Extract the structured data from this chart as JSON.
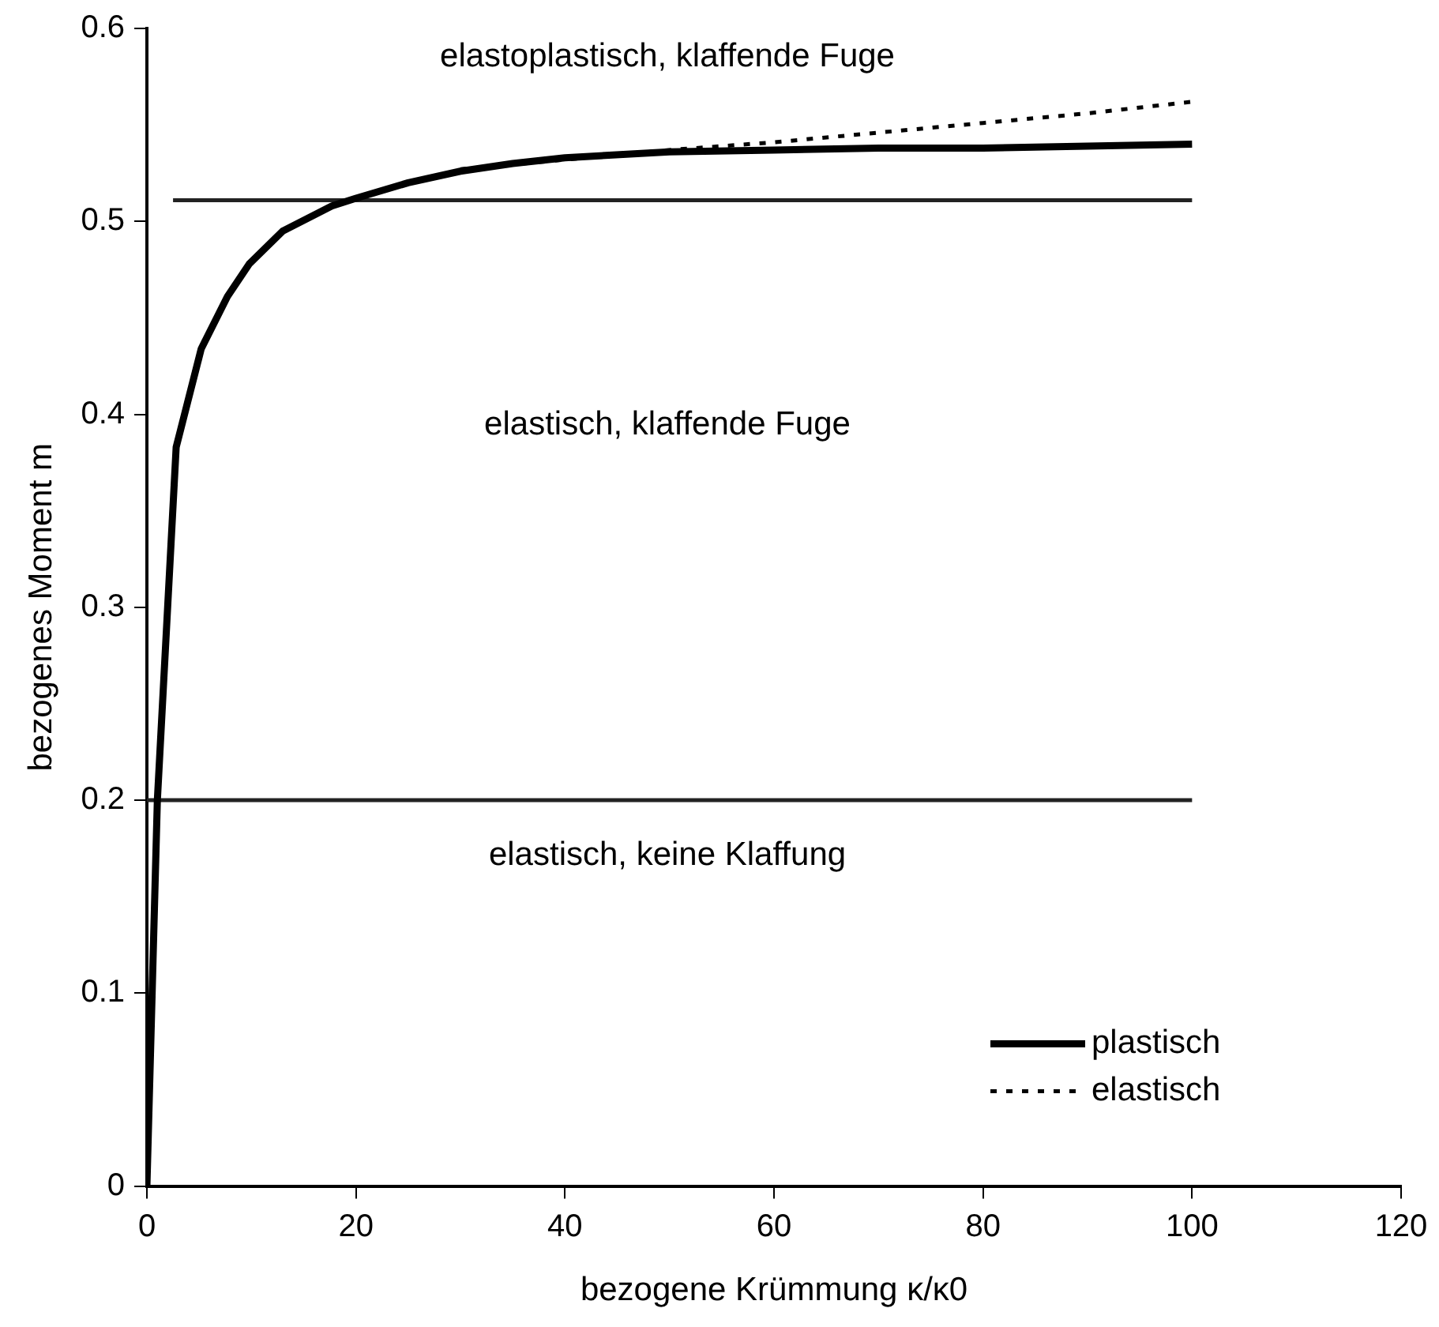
{
  "chart_data": {
    "type": "line",
    "xlabel": "bezogene Krümmung κ/κ0",
    "ylabel": "bezogenes Moment m",
    "xlim": [
      0,
      120
    ],
    "xticks": [
      0,
      20,
      40,
      60,
      80,
      100,
      120
    ],
    "ylim": [
      0,
      0.6
    ],
    "yticks": [
      0,
      0.1,
      0.2,
      0.3,
      0.4,
      0.5,
      0.6
    ],
    "grid": false,
    "legend": "bottom right",
    "marker": "none",
    "series": [
      {
        "name": "plastisch",
        "color": "#000000",
        "line_style": "solid",
        "x": [
          0,
          1,
          2.8,
          5.2,
          7.7,
          9.8,
          13,
          17.7,
          20,
          25,
          30,
          35,
          40,
          50,
          60,
          70,
          80,
          90,
          100
        ],
        "values": [
          0,
          0.2,
          0.383,
          0.434,
          0.461,
          0.478,
          0.495,
          0.508,
          0.512,
          0.52,
          0.526,
          0.53,
          0.533,
          0.536,
          0.537,
          0.538,
          0.538,
          0.539,
          0.54
        ]
      },
      {
        "name": "elastisch",
        "color": "#000000",
        "line_style": "dotted",
        "x": [
          30,
          40,
          50,
          60,
          70,
          80,
          90,
          100
        ],
        "values": [
          0.527,
          0.532,
          0.537,
          0.541,
          0.546,
          0.551,
          0.556,
          0.562
        ]
      },
      {
        "color": "#222222",
        "line_style": "solid",
        "x": [
          0,
          100
        ],
        "values": [
          0.2,
          0.2
        ]
      },
      {
        "color": "#222222",
        "line_style": "solid",
        "x": [
          2.5,
          100
        ],
        "values": [
          0.511,
          0.511
        ]
      }
    ],
    "annotations": [
      "elastoplastisch, klaffende Fuge",
      "elastisch, klaffende Fuge",
      "elastisch, keine Klaffung"
    ]
  }
}
